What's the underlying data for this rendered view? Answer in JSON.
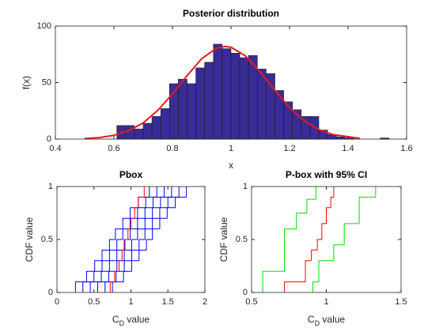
{
  "chart_data": [
    {
      "type": "histogram",
      "title": "Posterior distribution",
      "xlabel": "x",
      "ylabel": "f(x)",
      "bins": [
        0.61,
        0.64,
        0.67,
        0.7,
        0.73,
        0.76,
        0.79,
        0.82,
        0.85,
        0.88,
        0.91,
        0.94,
        0.97,
        1.0,
        1.03,
        1.06,
        1.09,
        1.12,
        1.15,
        1.18,
        1.21,
        1.24,
        1.27,
        1.3,
        1.33,
        1.36,
        1.39,
        1.42,
        1.45,
        1.48,
        1.51,
        1.54
      ],
      "values": [
        12,
        12,
        9,
        14,
        20,
        27,
        49,
        53,
        49,
        63,
        68,
        84,
        80,
        76,
        72,
        74,
        62,
        58,
        43,
        33,
        26,
        20,
        20,
        8,
        4,
        2,
        1,
        0,
        0,
        0,
        1
      ],
      "color": "#3a2c96",
      "curve": {
        "x": [
          0.5,
          0.55,
          0.6,
          0.65,
          0.7,
          0.75,
          0.8,
          0.85,
          0.9,
          0.95,
          0.98,
          1.0,
          1.05,
          1.1,
          1.15,
          1.2,
          1.25,
          1.3,
          1.35,
          1.44
        ],
        "values": [
          0.5,
          1.3,
          3.4,
          7.3,
          14.3,
          25.5,
          39.9,
          56.2,
          71.2,
          80.4,
          82,
          81.3,
          73.5,
          59.5,
          43.2,
          27.9,
          16.2,
          8.4,
          3.9,
          0.7
        ],
        "color": "#e6191c"
      },
      "xlim": [
        0.4,
        1.6
      ],
      "xticks": [
        0.4,
        0.6,
        0.8,
        1,
        1.2,
        1.4,
        1.6
      ],
      "ylim": [
        0,
        100
      ],
      "yticks": [
        0,
        50,
        100
      ]
    },
    {
      "type": "step",
      "title": "Pbox",
      "xlabel": [
        "C",
        "D",
        " value"
      ],
      "ylabel": "CDF value",
      "series": [
        {
          "color": "#0000ff",
          "x": [
            0.25,
            0.4,
            0.51,
            0.61,
            0.71,
            0.79,
            0.89,
            0.99,
            1.1,
            1.25
          ],
          "values": [
            0.1,
            0.2,
            0.3,
            0.4,
            0.5,
            0.6,
            0.7,
            0.8,
            0.9,
            1
          ]
        },
        {
          "color": "#0000ff",
          "x": [
            0.35,
            0.5,
            0.61,
            0.71,
            0.81,
            0.89,
            0.99,
            1.09,
            1.2,
            1.35
          ],
          "values": [
            0.1,
            0.2,
            0.3,
            0.4,
            0.5,
            0.6,
            0.7,
            0.8,
            0.9,
            1
          ]
        },
        {
          "color": "#0000ff",
          "x": [
            0.45,
            0.6,
            0.71,
            0.81,
            0.91,
            0.99,
            1.09,
            1.19,
            1.3,
            1.45
          ],
          "values": [
            0.1,
            0.2,
            0.3,
            0.4,
            0.5,
            0.6,
            0.7,
            0.8,
            0.9,
            1
          ]
        },
        {
          "color": "#0000ff",
          "x": [
            0.55,
            0.7,
            0.81,
            0.91,
            1.01,
            1.09,
            1.19,
            1.29,
            1.4,
            1.55
          ],
          "values": [
            0.1,
            0.2,
            0.3,
            0.4,
            0.5,
            0.6,
            0.7,
            0.8,
            0.9,
            1
          ]
        },
        {
          "color": "#0000ff",
          "x": [
            0.65,
            0.8,
            0.91,
            1.01,
            1.11,
            1.19,
            1.29,
            1.39,
            1.5,
            1.65
          ],
          "values": [
            0.1,
            0.2,
            0.3,
            0.4,
            0.5,
            0.6,
            0.7,
            0.8,
            0.9,
            1
          ]
        },
        {
          "color": "#0000ff",
          "x": [
            0.75,
            0.9,
            1.01,
            1.11,
            1.21,
            1.29,
            1.39,
            1.49,
            1.6,
            1.75
          ],
          "values": [
            0.1,
            0.2,
            0.3,
            0.4,
            0.5,
            0.6,
            0.7,
            0.8,
            0.9,
            1
          ]
        },
        {
          "color": "#ff0000",
          "x": [
            0.72,
            0.78,
            0.84,
            0.88,
            0.92,
            0.96,
            1.0,
            1.05,
            1.1,
            1.18
          ],
          "values": [
            0.1,
            0.2,
            0.3,
            0.4,
            0.5,
            0.6,
            0.7,
            0.8,
            0.9,
            1
          ]
        }
      ],
      "xlim": [
        0,
        2
      ],
      "xticks": [
        0,
        0.5,
        1,
        1.5,
        2
      ],
      "ylim": [
        0,
        1
      ],
      "yticks": [
        0,
        0.5,
        1
      ]
    },
    {
      "type": "step",
      "title": "P-box with 95% CI",
      "xlabel": [
        "C",
        "D",
        " value"
      ],
      "ylabel": "CDF value",
      "series": [
        {
          "color": "#00e000",
          "x": [
            0.575,
            0.72,
            0.8,
            0.87,
            0.93
          ],
          "values": [
            0.2,
            0.6,
            0.75,
            0.88,
            1
          ]
        },
        {
          "color": "#00e000",
          "x": [
            0.91,
            0.95,
            1.05,
            1.12,
            1.22,
            1.33
          ],
          "values": [
            0.1,
            0.3,
            0.45,
            0.65,
            0.9,
            1
          ]
        },
        {
          "color": "#ff0000",
          "x": [
            0.72,
            0.86,
            0.9,
            0.94,
            0.97,
            1.0,
            1.03,
            1.05
          ],
          "values": [
            0.1,
            0.3,
            0.4,
            0.5,
            0.65,
            0.8,
            0.9,
            1
          ]
        }
      ],
      "xlim": [
        0.5,
        1.5
      ],
      "xticks": [
        0.5,
        1,
        1.5
      ],
      "ylim": [
        0,
        1
      ],
      "yticks": [
        0,
        0.5,
        1
      ]
    }
  ]
}
